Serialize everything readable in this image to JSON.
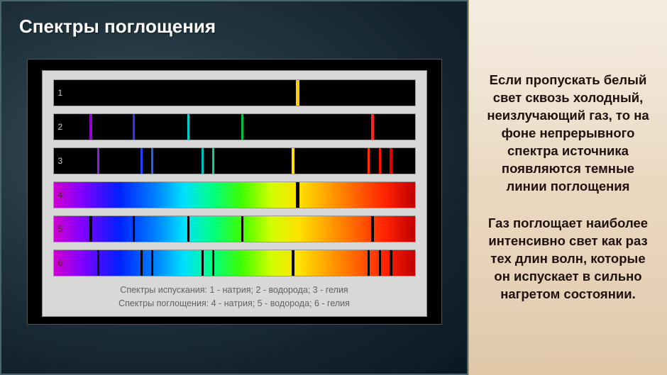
{
  "title": "Спектры поглощения",
  "rows": [
    {
      "num": "1",
      "background": "#000000",
      "lines": [
        {
          "pos": 67,
          "width": 5,
          "color": "#ffcc00"
        }
      ]
    },
    {
      "num": "2",
      "background": "#000000",
      "lines": [
        {
          "pos": 10,
          "width": 4,
          "color": "#9000d0"
        },
        {
          "pos": 22,
          "width": 3,
          "color": "#3030ff"
        },
        {
          "pos": 37,
          "width": 3,
          "color": "#00d0d0"
        },
        {
          "pos": 52,
          "width": 3,
          "color": "#00c040"
        },
        {
          "pos": 88,
          "width": 4,
          "color": "#ff2020"
        }
      ]
    },
    {
      "num": "3",
      "background": "#000000",
      "lines": [
        {
          "pos": 12,
          "width": 3,
          "color": "#8020e0"
        },
        {
          "pos": 24,
          "width": 3,
          "color": "#2040ff"
        },
        {
          "pos": 27,
          "width": 3,
          "color": "#2060ff"
        },
        {
          "pos": 41,
          "width": 3,
          "color": "#00c0c0"
        },
        {
          "pos": 44,
          "width": 3,
          "color": "#00d0a0"
        },
        {
          "pos": 66,
          "width": 4,
          "color": "#ffe000"
        },
        {
          "pos": 87,
          "width": 3,
          "color": "#ff3000"
        },
        {
          "pos": 90,
          "width": 3,
          "color": "#ff1000"
        },
        {
          "pos": 93,
          "width": 4,
          "color": "#e00000"
        }
      ]
    },
    {
      "num": "4",
      "background": "rainbow",
      "lines": [
        {
          "pos": 67,
          "width": 5,
          "color": "#000000"
        }
      ]
    },
    {
      "num": "5",
      "background": "rainbow",
      "lines": [
        {
          "pos": 10,
          "width": 4,
          "color": "#000000"
        },
        {
          "pos": 22,
          "width": 3,
          "color": "#000000"
        },
        {
          "pos": 37,
          "width": 3,
          "color": "#000000"
        },
        {
          "pos": 52,
          "width": 3,
          "color": "#000000"
        },
        {
          "pos": 88,
          "width": 4,
          "color": "#000000"
        }
      ]
    },
    {
      "num": "6",
      "background": "rainbow",
      "lines": [
        {
          "pos": 12,
          "width": 3,
          "color": "#000000"
        },
        {
          "pos": 24,
          "width": 3,
          "color": "#000000"
        },
        {
          "pos": 27,
          "width": 3,
          "color": "#000000"
        },
        {
          "pos": 41,
          "width": 3,
          "color": "#000000"
        },
        {
          "pos": 44,
          "width": 3,
          "color": "#000000"
        },
        {
          "pos": 66,
          "width": 4,
          "color": "#000000"
        },
        {
          "pos": 87,
          "width": 3,
          "color": "#000000"
        },
        {
          "pos": 90,
          "width": 3,
          "color": "#000000"
        },
        {
          "pos": 93,
          "width": 4,
          "color": "#000000"
        }
      ]
    }
  ],
  "caption_line1": "Спектры испускания: 1 - натрия; 2 - водорода; 3 - гелия",
  "caption_line2": "Спектры поглощения: 4 - натрия; 5 - водорода; 6 - гелия",
  "desc1": "Если пропускать белый свет сквозь холодный, неизлучающий газ, то на фоне непрерывного спектра источника появляются темные линии поглощения",
  "desc2": "Газ поглощает наиболее интенсивно свет как раз тех длин волн, которые он испускает в сильно нагретом состоянии.",
  "row_label_color": "#cccccc",
  "row_label_color_dark": "#502020"
}
